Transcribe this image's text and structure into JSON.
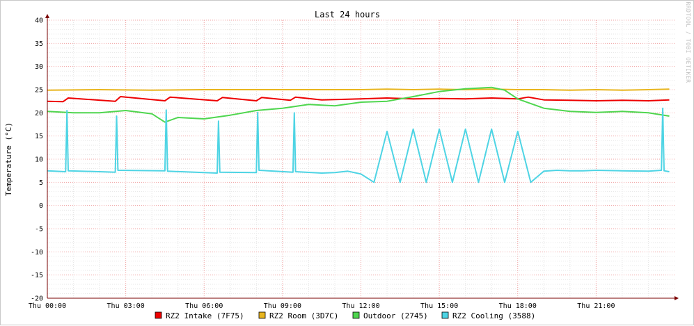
{
  "chart_data": {
    "type": "line",
    "title": "Last 24 hours",
    "ylabel": "Temperature (°C)",
    "watermark": "RRDTOOL / TOBI OETIKER",
    "ylim": [
      -20,
      40
    ],
    "xlim": [
      0,
      24
    ],
    "yticks": [
      40,
      35,
      30,
      25,
      20,
      15,
      10,
      5,
      0,
      -5,
      -10,
      -15,
      -20
    ],
    "xticks": [
      {
        "x": 0,
        "label": "Thu 00:00"
      },
      {
        "x": 3,
        "label": "Thu 03:00"
      },
      {
        "x": 6,
        "label": "Thu 06:00"
      },
      {
        "x": 9,
        "label": "Thu 09:00"
      },
      {
        "x": 12,
        "label": "Thu 12:00"
      },
      {
        "x": 15,
        "label": "Thu 15:00"
      },
      {
        "x": 18,
        "label": "Thu 18:00"
      },
      {
        "x": 21,
        "label": "Thu 21:00"
      }
    ],
    "grid": true,
    "legend_position": "bottom",
    "series": [
      {
        "name": "RZ2 Intake (7F75)",
        "color": "#ee0000",
        "x": [
          0,
          0.6,
          0.8,
          2.6,
          2.8,
          4.5,
          4.7,
          6.5,
          6.7,
          8.0,
          8.2,
          9.3,
          9.5,
          10.5,
          12.0,
          13.0,
          14.0,
          15.0,
          16.0,
          17.0,
          18.0,
          18.4,
          19.0,
          20.0,
          21.0,
          22.0,
          23.0,
          23.8
        ],
        "y": [
          22.5,
          22.4,
          23.2,
          22.5,
          23.5,
          22.6,
          23.4,
          22.6,
          23.3,
          22.6,
          23.3,
          22.7,
          23.4,
          22.8,
          23.0,
          23.2,
          23.0,
          23.1,
          23.0,
          23.2,
          23.0,
          23.4,
          22.8,
          22.7,
          22.6,
          22.7,
          22.6,
          22.8
        ]
      },
      {
        "name": "RZ2 Room (3D7C)",
        "color": "#e8b51e",
        "x": [
          0,
          2,
          4,
          6,
          8,
          10,
          12,
          13,
          14,
          15,
          16,
          17,
          18,
          19,
          20,
          21,
          22,
          23,
          23.8
        ],
        "y": [
          24.9,
          25.0,
          24.9,
          25.0,
          25.0,
          25.0,
          25.0,
          25.1,
          25.0,
          25.1,
          25.0,
          25.1,
          25.0,
          25.0,
          24.9,
          25.0,
          24.9,
          25.0,
          25.1
        ]
      },
      {
        "name": "Outdoor (2745)",
        "color": "#4fd64f",
        "x": [
          0,
          1,
          2,
          3,
          4,
          4.5,
          5,
          6,
          7,
          8,
          9,
          10,
          11,
          12,
          13,
          14,
          15,
          16,
          17,
          17.5,
          18,
          19,
          20,
          21,
          22,
          23,
          23.8
        ],
        "y": [
          20.3,
          20.0,
          20.0,
          20.5,
          19.8,
          18.0,
          19.0,
          18.7,
          19.5,
          20.5,
          21.0,
          21.8,
          21.5,
          22.3,
          22.5,
          23.5,
          24.6,
          25.2,
          25.5,
          24.9,
          23.0,
          21.0,
          20.3,
          20.1,
          20.3,
          20.0,
          19.3
        ]
      },
      {
        "name": "RZ2 Cooling (3588)",
        "color": "#4ed4e4",
        "x": [
          0,
          0.7,
          0.75,
          0.8,
          2.6,
          2.65,
          2.7,
          4.5,
          4.55,
          4.6,
          6.5,
          6.55,
          6.6,
          8.0,
          8.05,
          8.1,
          9.4,
          9.45,
          9.5,
          10.5,
          11.0,
          11.5,
          12.0,
          12.5,
          13.0,
          13.5,
          14.0,
          14.5,
          15.0,
          15.5,
          16.0,
          16.5,
          17.0,
          17.5,
          18.0,
          18.5,
          19.0,
          19.5,
          20.0,
          20.5,
          21.0,
          22.0,
          23.0,
          23.5,
          23.55,
          23.6,
          23.8
        ],
        "y": [
          7.5,
          7.3,
          20.5,
          7.5,
          7.2,
          19.3,
          7.6,
          7.5,
          20.6,
          7.4,
          7.0,
          18.2,
          7.2,
          7.1,
          20.1,
          7.6,
          7.2,
          20.0,
          7.3,
          7.0,
          7.1,
          7.4,
          6.8,
          5.0,
          16.0,
          5.0,
          16.5,
          5.0,
          16.5,
          5.0,
          16.5,
          5.0,
          16.5,
          5.0,
          16.0,
          5.0,
          7.4,
          7.6,
          7.5,
          7.5,
          7.6,
          7.5,
          7.4,
          7.6,
          21.0,
          7.5,
          7.3
        ]
      }
    ]
  }
}
